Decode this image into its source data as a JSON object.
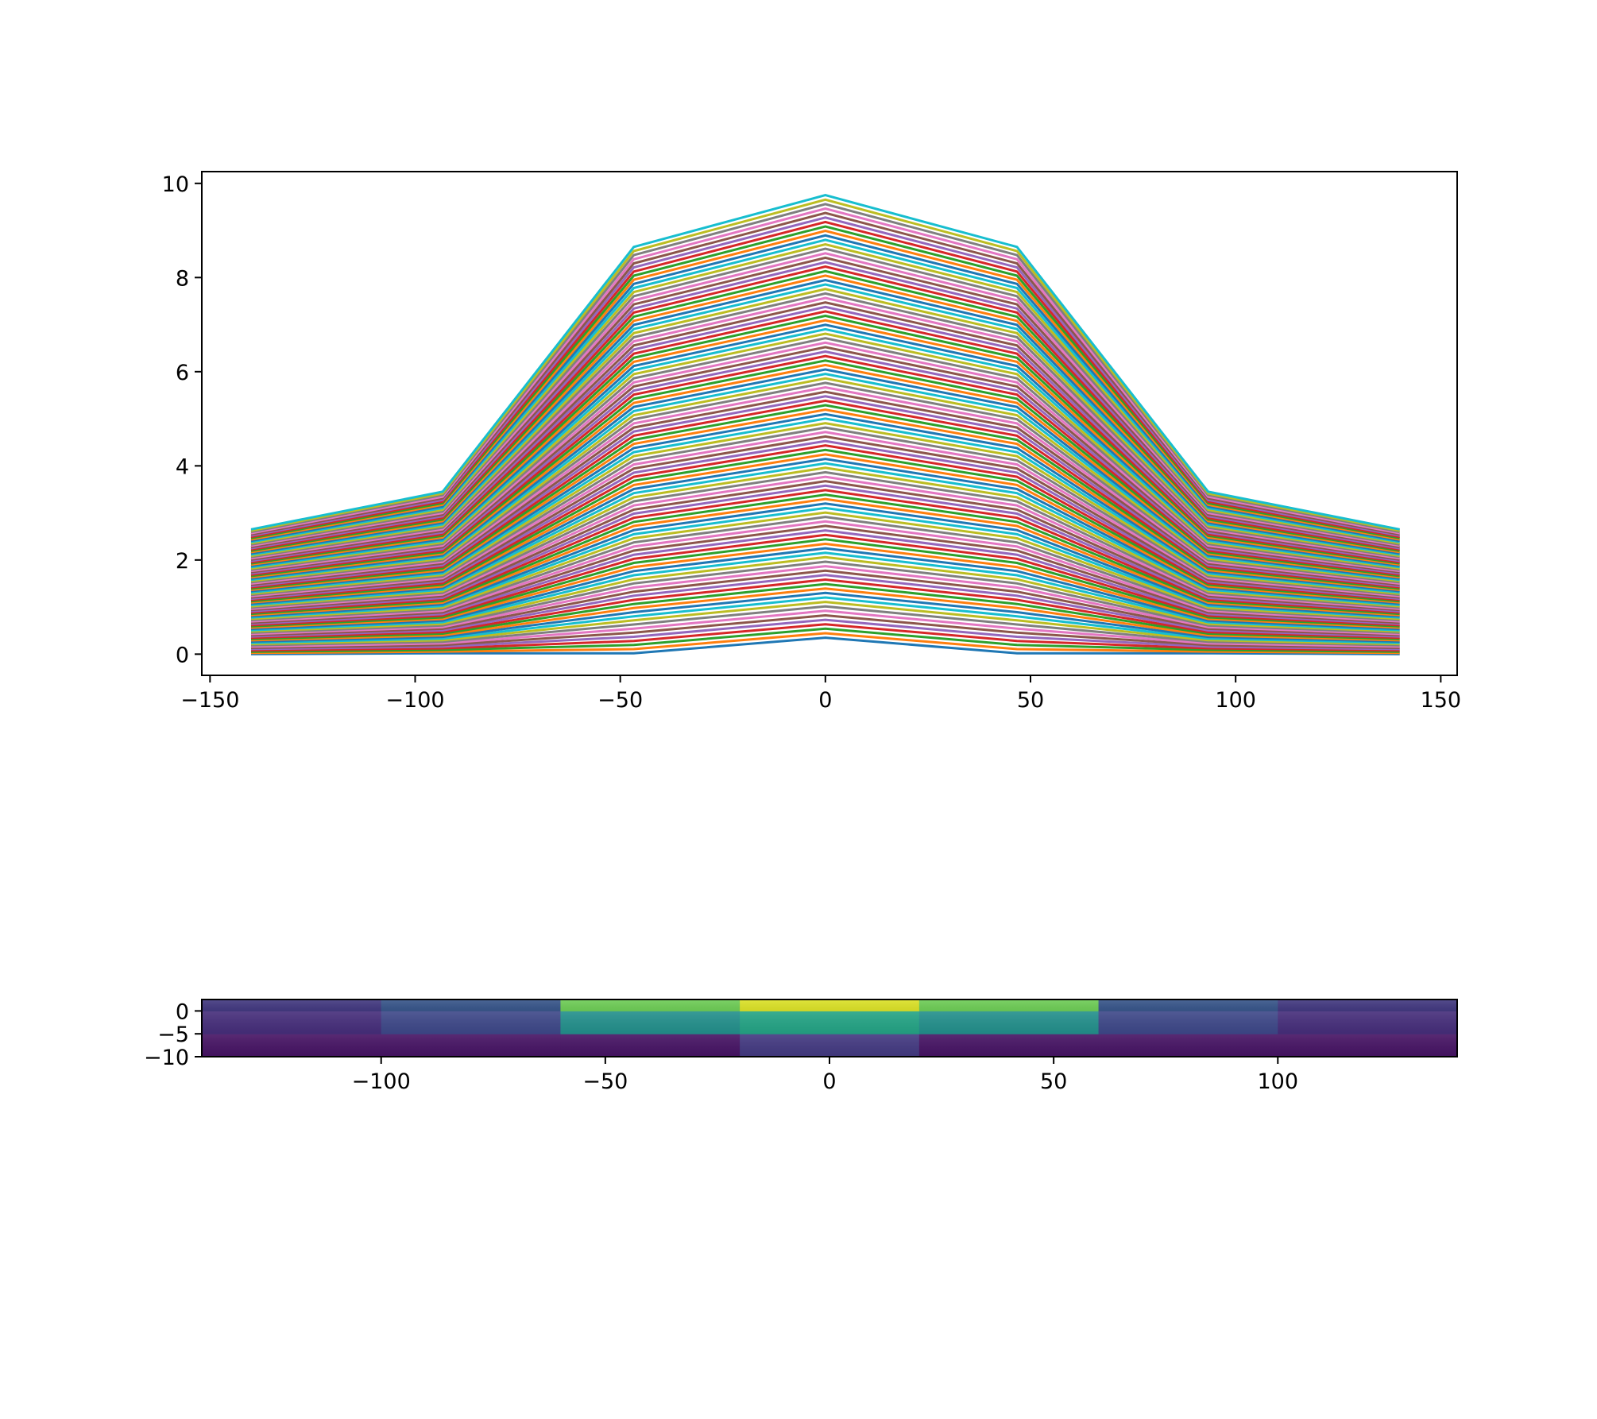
{
  "chart_data": [
    {
      "type": "line",
      "series_count": 100,
      "series_style": "many stacked polylines cycling the default 10-color palette",
      "palette": [
        "#1f77b4",
        "#ff7f0e",
        "#2ca02c",
        "#d62728",
        "#9467bd",
        "#8c564b",
        "#e377c2",
        "#7f7f7f",
        "#bcbd22",
        "#17becf"
      ],
      "x": [
        -140,
        -93.3,
        -46.7,
        0,
        46.7,
        93.3,
        140
      ],
      "bottom_series": {
        "values": [
          0.0,
          0.02,
          0.02,
          0.35,
          0.02,
          0.02,
          0.0
        ]
      },
      "top_series": {
        "values": [
          2.65,
          3.45,
          8.65,
          9.75,
          8.65,
          3.45,
          2.65
        ]
      },
      "xlim": [
        -152,
        154
      ],
      "ylim": [
        -0.45,
        10.25
      ],
      "xticks": [
        -150,
        -100,
        -50,
        0,
        50,
        100,
        150
      ],
      "xtick_labels": [
        "−150",
        "−100",
        "−50",
        "0",
        "50",
        "100",
        "150"
      ],
      "yticks": [
        0,
        2,
        4,
        6,
        8,
        10
      ],
      "ytick_labels": [
        "0",
        "2",
        "4",
        "6",
        "8",
        "10"
      ],
      "grid": false,
      "legend": false
    },
    {
      "type": "heatmap",
      "colormap": "viridis",
      "x_bins": [
        -140,
        -100,
        -60,
        -20,
        20,
        60,
        100,
        140
      ],
      "y_bins": [
        -10,
        -5,
        0,
        2.5
      ],
      "z": [
        [
          0.05,
          0.05,
          0.05,
          0.17,
          0.05,
          0.05,
          0.05
        ],
        [
          0.13,
          0.22,
          0.5,
          0.58,
          0.5,
          0.22,
          0.13
        ],
        [
          0.17,
          0.27,
          0.78,
          0.95,
          0.78,
          0.27,
          0.17
        ]
      ],
      "xlim": [
        -140,
        140
      ],
      "ylim": [
        -10,
        2.5
      ],
      "xticks": [
        -100,
        -50,
        0,
        50,
        100
      ],
      "xtick_labels": [
        "−100",
        "−50",
        "0",
        "50",
        "100"
      ],
      "yticks": [
        0,
        -5,
        -10
      ],
      "ytick_labels": [
        "0",
        "−5",
        "−10"
      ],
      "grid": false,
      "legend": false
    }
  ]
}
